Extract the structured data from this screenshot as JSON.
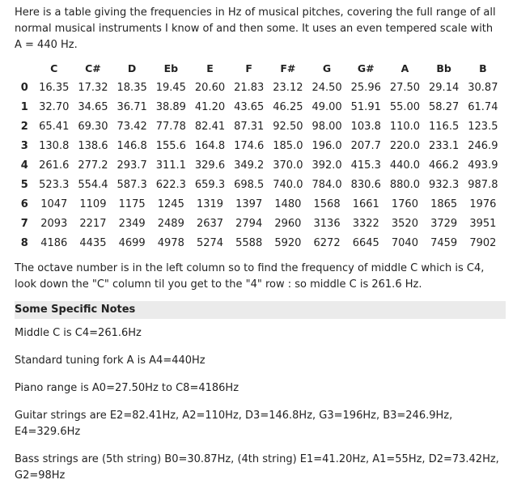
{
  "intro": "Here is a table giving the frequencies in Hz of musical pitches, covering the full range of all normal musical instruments I know of and then some. It uses an even tempered scale with A = 440 Hz.",
  "table": {
    "headers": [
      "",
      "C",
      "C#",
      "D",
      "Eb",
      "E",
      "F",
      "F#",
      "G",
      "G#",
      "A",
      "Bb",
      "B"
    ],
    "rows": [
      {
        "octave": "0",
        "values": [
          "16.35",
          "17.32",
          "18.35",
          "19.45",
          "20.60",
          "21.83",
          "23.12",
          "24.50",
          "25.96",
          "27.50",
          "29.14",
          "30.87"
        ]
      },
      {
        "octave": "1",
        "values": [
          "32.70",
          "34.65",
          "36.71",
          "38.89",
          "41.20",
          "43.65",
          "46.25",
          "49.00",
          "51.91",
          "55.00",
          "58.27",
          "61.74"
        ]
      },
      {
        "octave": "2",
        "values": [
          "65.41",
          "69.30",
          "73.42",
          "77.78",
          "82.41",
          "87.31",
          "92.50",
          "98.00",
          "103.8",
          "110.0",
          "116.5",
          "123.5"
        ]
      },
      {
        "octave": "3",
        "values": [
          "130.8",
          "138.6",
          "146.8",
          "155.6",
          "164.8",
          "174.6",
          "185.0",
          "196.0",
          "207.7",
          "220.0",
          "233.1",
          "246.9"
        ]
      },
      {
        "octave": "4",
        "values": [
          "261.6",
          "277.2",
          "293.7",
          "311.1",
          "329.6",
          "349.2",
          "370.0",
          "392.0",
          "415.3",
          "440.0",
          "466.2",
          "493.9"
        ]
      },
      {
        "octave": "5",
        "values": [
          "523.3",
          "554.4",
          "587.3",
          "622.3",
          "659.3",
          "698.5",
          "740.0",
          "784.0",
          "830.6",
          "880.0",
          "932.3",
          "987.8"
        ]
      },
      {
        "octave": "6",
        "values": [
          "1047",
          "1109",
          "1175",
          "1245",
          "1319",
          "1397",
          "1480",
          "1568",
          "1661",
          "1760",
          "1865",
          "1976"
        ]
      },
      {
        "octave": "7",
        "values": [
          "2093",
          "2217",
          "2349",
          "2489",
          "2637",
          "2794",
          "2960",
          "3136",
          "3322",
          "3520",
          "3729",
          "3951"
        ]
      },
      {
        "octave": "8",
        "values": [
          "4186",
          "4435",
          "4699",
          "4978",
          "5274",
          "5588",
          "5920",
          "6272",
          "6645",
          "7040",
          "7459",
          "7902"
        ]
      }
    ]
  },
  "explanation": "The octave number is in the left column so to find the frequency of middle C which is C4, look down the \"C\" column til you get to the \"4\" row : so middle C is 261.6 Hz.",
  "section_title": "Some Specific Notes",
  "notes": [
    "Middle C is C4=261.6Hz",
    "Standard tuning fork A is A4=440Hz",
    "Piano range is A0=27.50Hz to C8=4186Hz",
    "Guitar strings are E2=82.41Hz, A2=110Hz, D3=146.8Hz, G3=196Hz, B3=246.9Hz, E4=329.6Hz",
    "Bass strings are (5th string) B0=30.87Hz, (4th string) E1=41.20Hz, A1=55Hz, D2=73.42Hz, G2=98Hz"
  ]
}
